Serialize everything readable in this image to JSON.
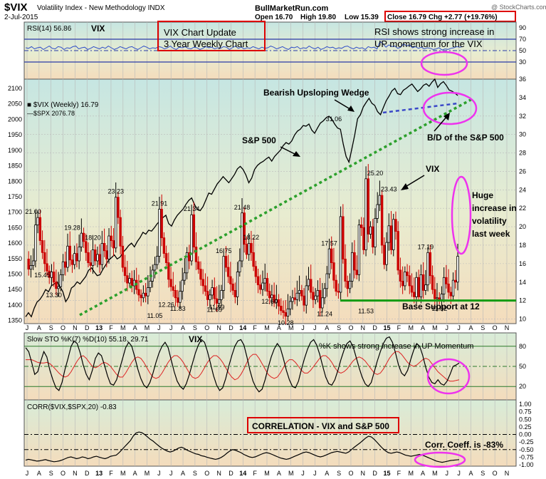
{
  "header": {
    "symbol": "$VIX",
    "name": "Volatility Index - New Methodology  INDX",
    "date": "2-Jul-2015",
    "source": "BullMarketRun.com",
    "open": "Open 16.70",
    "high": "High 19.80",
    "low": "Low 15.39",
    "close_chg": "Close 16.79  Chg +2.77 (+19.76%)",
    "credit": "@ StockCharts.com"
  },
  "colors": {
    "panel_bg_top": "#c8e8e0",
    "panel_bg_bottom": "#f4dcc0",
    "vix_up": "#000000",
    "vix_down": "#cc0000",
    "spx": "#000000",
    "wedge": "#3a48c8",
    "trendline": "#2ca02c",
    "support": "#139b13",
    "rsi": "#3050c8",
    "annotation_box": "#dd0000",
    "highlight": "#ee33ee",
    "sto_d": "#dd2222"
  },
  "annotations": {
    "title_box_line1": "VIX Chart Update",
    "title_box_line2": "3 Year Weekly Chart",
    "rsi_note_line1": "RSI shows strong increase in",
    "rsi_note_line2": "UP momentum for the VIX",
    "wedge": "Bearish Upsloping Wedge",
    "spx": "S&P 500",
    "bd": "B/D of the S&P 500",
    "vix": "VIX",
    "huge_1": "Huge",
    "huge_2": "increase in",
    "huge_3": "volatility",
    "huge_4": "last week",
    "support": "Base Support at 12",
    "sto_note": "%K shows strong increase in UP Momentum",
    "corr_box": "CORRELATION  - VIX and S&P 500",
    "corr_note": "Corr. Coeff. is -83%"
  },
  "chart_data": [
    {
      "type": "line",
      "panel": "RSI",
      "label": "RSI(14) 56.86",
      "tag": "VIX",
      "ylim": [
        0,
        100
      ],
      "ticks": [
        90,
        70,
        50,
        30
      ],
      "ref_lines": [
        70,
        30
      ],
      "values": [
        55,
        54,
        57,
        53,
        55,
        56,
        52,
        55,
        58,
        54,
        53,
        57,
        56,
        52,
        55,
        54,
        57,
        58,
        53,
        55,
        56,
        52,
        54,
        57,
        55,
        53,
        56,
        54,
        58,
        55,
        52,
        54,
        57,
        55,
        53,
        56,
        57,
        54,
        52,
        55,
        58,
        56,
        53,
        55,
        54,
        57,
        56,
        53,
        55,
        58,
        54,
        52,
        56,
        55,
        57,
        54,
        53,
        56,
        55,
        52,
        54,
        57,
        55,
        56,
        53,
        55,
        54,
        57,
        56,
        52,
        55,
        58,
        54,
        56,
        53,
        55,
        54,
        57,
        55,
        53,
        56,
        54,
        55,
        58,
        56,
        53,
        55,
        57,
        54,
        52,
        56,
        55,
        57,
        53,
        55,
        54,
        58,
        55,
        53,
        56,
        52,
        54,
        57,
        55,
        56,
        53,
        55,
        54,
        57,
        58,
        55,
        53,
        56,
        54,
        55,
        52,
        57,
        55,
        56,
        53,
        66,
        62,
        56,
        60,
        57,
        58,
        54,
        56,
        62,
        58,
        60,
        55,
        57,
        54,
        56,
        53,
        55,
        54,
        52,
        53,
        55,
        51,
        53,
        52,
        54,
        55,
        57,
        56,
        57
      ]
    },
    {
      "type": "line",
      "panel": "price",
      "series": [
        {
          "name": "$VIX (Weekly) 16.79",
          "values": [
            16.5,
            15.4,
            15.8,
            16.3,
            20.2,
            21.0,
            18.5,
            17.2,
            16.0,
            15.2,
            14.5,
            15.1,
            14.0,
            13.3,
            13.5,
            14.8,
            16.2,
            15.6,
            17.9,
            16.4,
            15.9,
            17.1,
            16.3,
            17.8,
            19.3,
            18.4,
            17.2,
            16.1,
            15.8,
            17.5,
            16.3,
            17.0,
            15.9,
            18.2,
            17.4,
            16.5,
            19.0,
            18.5,
            17.7,
            23.2,
            21.0,
            17.9,
            15.6,
            14.7,
            13.9,
            14.4,
            13.6,
            14.2,
            13.2,
            12.6,
            12.3,
            12.8,
            12.5,
            13.4,
            14.1,
            15.3,
            15.9,
            16.8,
            21.9,
            18.8,
            17.1,
            16.1,
            14.3,
            13.5,
            13.1,
            12.3,
            11.8,
            13.0,
            14.2,
            15.0,
            17.2,
            16.3,
            21.3,
            17.8,
            16.2,
            15.4,
            14.3,
            13.6,
            13.0,
            12.1,
            12.6,
            13.4,
            12.2,
            11.7,
            12.1,
            13.1,
            16.8,
            15.6,
            14.6,
            13.8,
            13.1,
            12.4,
            15.1,
            16.3,
            21.5,
            18.1,
            17.0,
            18.2,
            17.2,
            15.7,
            14.6,
            13.7,
            13.2,
            13.9,
            14.4,
            13.0,
            12.3,
            12.6,
            11.8,
            12.1,
            11.4,
            10.9,
            10.7,
            10.3,
            11.1,
            11.9,
            12.3,
            12.1,
            12.8,
            13.1,
            12.5,
            11.5,
            13.6,
            14.3,
            12.9,
            12.1,
            12.5,
            13.1,
            11.2,
            12.3,
            13.3,
            14.9,
            17.6,
            16.1,
            14.2,
            13.0,
            12.9,
            21.1,
            16.5,
            14.1,
            13.3,
            14.1,
            17.2,
            15.3,
            14.8,
            20.2,
            19.9,
            17.5,
            25.2,
            19.2,
            20.0,
            17.8,
            20.9,
            22.4,
            23.4,
            18.0,
            15.9,
            18.3,
            20.1,
            17.5,
            20.8,
            19.5,
            15.3,
            14.1,
            13.6,
            15.1,
            14.7,
            13.6,
            12.9,
            12.4,
            14.5,
            12.4,
            14.8,
            13.1,
            13.7,
            17.2,
            14.7,
            13.2,
            12.2,
            12.3,
            12.1,
            12.7,
            14.5,
            13.8,
            12.9,
            12.5,
            14.2,
            14.0,
            16.8
          ]
        },
        {
          "name": "$SPX 2076.78",
          "values": [
            1362,
            1375,
            1362,
            1390,
            1410,
            1418,
            1432,
            1450,
            1443,
            1462,
            1468,
            1475,
            1460,
            1443,
            1411,
            1425,
            1455,
            1462,
            1475,
            1468,
            1480,
            1492,
            1512,
            1520,
            1507,
            1495,
            1498,
            1515,
            1530,
            1545,
            1553,
            1562,
            1549,
            1555,
            1570,
            1580,
            1592,
            1600,
            1588,
            1605,
            1618,
            1635,
            1629,
            1642,
            1639,
            1650,
            1663,
            1672,
            1683,
            1690,
            1663,
            1655,
            1675,
            1690,
            1700,
            1710,
            1725,
            1738,
            1746,
            1725,
            1710,
            1705,
            1718,
            1740,
            1762,
            1758,
            1775,
            1792,
            1803,
            1815,
            1805,
            1795,
            1808,
            1822,
            1840,
            1848,
            1838,
            1820,
            1795,
            1810,
            1838,
            1851,
            1859,
            1864,
            1872,
            1878,
            1865,
            1880,
            1890,
            1900,
            1915,
            1925,
            1920,
            1930,
            1950,
            1962,
            1968,
            1980,
            1978,
            1985,
            1965,
            1955,
            1972,
            1988,
            1995,
            2005,
            2010,
            2001,
            1985,
            1972,
            1968,
            1920,
            1880,
            1862,
            1905,
            1950,
            2002,
            2015,
            2040,
            2055,
            2068,
            2052,
            2045,
            2025,
            2015,
            2038,
            2060,
            2075,
            2092,
            2100,
            2083,
            2080,
            2094,
            2100,
            2108,
            2114,
            2102,
            2090,
            2098,
            2110,
            2115,
            2107,
            2120,
            2130,
            2103,
            2115,
            2122,
            2110,
            2095,
            2091,
            2085,
            2077
          ]
        }
      ],
      "ylim_left": [
        1340,
        2130
      ],
      "ylim_right": [
        9.5,
        36
      ],
      "ticks_left": [
        2100,
        2050,
        2000,
        1950,
        1900,
        1850,
        1800,
        1750,
        1700,
        1650,
        1600,
        1550,
        1500,
        1450,
        1400,
        1350
      ],
      "ticks_right": [
        32,
        30,
        28,
        26,
        24,
        22,
        20,
        18,
        16,
        14,
        12,
        10
      ],
      "ticks_right_partial": [
        34,
        36
      ],
      "data_labels": [
        "21.00",
        "15.45",
        "13.30",
        "23.23",
        "19.28",
        "18.20",
        "11.05",
        "12.26",
        "21.91",
        "11.83",
        "21.34",
        "11.99",
        "16.75",
        "11.69",
        "21.48",
        "18.22",
        "12.60",
        "10.28",
        "17.57",
        "11.24",
        "31.06",
        "25.20",
        "23.43",
        "11.53",
        "17.19",
        "11.82"
      ],
      "support_level": 12
    },
    {
      "type": "line",
      "panel": "Slow STO",
      "label": "Slow STO %K(7) %D(10) 55.18, 29.71",
      "tag": "VIX",
      "ylim": [
        0,
        100
      ],
      "ticks": [
        80,
        50,
        20
      ],
      "ref_lines": [
        80,
        50,
        20
      ],
      "series": [
        {
          "name": "%K",
          "values": [
            78,
            72,
            56,
            38,
            42,
            58,
            72,
            64,
            44,
            30,
            18,
            14,
            26,
            46,
            62,
            80,
            88,
            84,
            70,
            52,
            38,
            30,
            44,
            62,
            70,
            66,
            52,
            36,
            24,
            22,
            30,
            46,
            62,
            78,
            86,
            80,
            64,
            46,
            32,
            22,
            18,
            26,
            40,
            56,
            70,
            80,
            86,
            78,
            60,
            42,
            28,
            20,
            16,
            24,
            38,
            54,
            70,
            82,
            90,
            86,
            72,
            54,
            36,
            22,
            14,
            18,
            32,
            50,
            66,
            80,
            88,
            90,
            82,
            64,
            44,
            28,
            18,
            12,
            16,
            30,
            48,
            64,
            76,
            84,
            78,
            62,
            44,
            30,
            20,
            18,
            28,
            46,
            62,
            76,
            86,
            90,
            82,
            68,
            50,
            34,
            24,
            22,
            30,
            44,
            60,
            74,
            84,
            88,
            80,
            64,
            48,
            34,
            24,
            20,
            26,
            42,
            58,
            72,
            84,
            92,
            94,
            86,
            70,
            52,
            40,
            36,
            44,
            60,
            74,
            84,
            80,
            66,
            48,
            34,
            26,
            24,
            30,
            24,
            22,
            28,
            38,
            50,
            52,
            55
          ]
        },
        {
          "name": "%D",
          "values": [
            60,
            60,
            60,
            58,
            56,
            55,
            55,
            56,
            54,
            50,
            45,
            40,
            36,
            34,
            36,
            42,
            50,
            58,
            64,
            66,
            62,
            56,
            50,
            48,
            50,
            54,
            56,
            54,
            50,
            44,
            38,
            34,
            34,
            40,
            48,
            56,
            62,
            64,
            62,
            56,
            48,
            40,
            34,
            32,
            34,
            40,
            48,
            56,
            62,
            66,
            66,
            62,
            56,
            48,
            40,
            34,
            32,
            34,
            40,
            48,
            56,
            62,
            66,
            66,
            62,
            56,
            48,
            40,
            34,
            30,
            32,
            38,
            46,
            56,
            64,
            68,
            68,
            62,
            54,
            46,
            38,
            34,
            32,
            34,
            40,
            48,
            56,
            60,
            60,
            56,
            50,
            44,
            40,
            40,
            44,
            50,
            56,
            62,
            66,
            66,
            62,
            56,
            48,
            42,
            40,
            42,
            46,
            52,
            58,
            62,
            64,
            62,
            58,
            52,
            46,
            40,
            38,
            40,
            46,
            54,
            62,
            68,
            72,
            72,
            68,
            62,
            56,
            52,
            50,
            52,
            56,
            60,
            62,
            60,
            54,
            48,
            42,
            38,
            34,
            30,
            28,
            28,
            29,
            30
          ]
        }
      ]
    },
    {
      "type": "line",
      "panel": "CORR",
      "label": "CORR($VIX,$SPX,20) -0.83",
      "ylim": [
        -1.0,
        1.0
      ],
      "ticks": [
        "1.00",
        "0.75",
        "0.50",
        "0.25",
        "0.00",
        "-0.25",
        "-0.50",
        "-0.75",
        "-1.00"
      ],
      "ref_lines": [
        0,
        -0.5
      ],
      "values": [
        -0.85,
        -0.82,
        -0.84,
        -0.86,
        -0.88,
        -0.87,
        -0.85,
        -0.83,
        -0.86,
        -0.88,
        -0.9,
        -0.89,
        -0.87,
        -0.84,
        -0.8,
        -0.76,
        -0.74,
        -0.77,
        -0.8,
        -0.78,
        -0.74,
        -0.76,
        -0.8,
        -0.78,
        -0.74,
        -0.72,
        -0.75,
        -0.78,
        -0.8,
        -0.77,
        -0.72,
        -0.7,
        -0.68,
        -0.6,
        -0.5,
        -0.4,
        -0.3,
        -0.2,
        -0.05,
        0.05,
        0.08,
        0.06,
        0.0,
        -0.08,
        -0.16,
        -0.22,
        -0.3,
        -0.38,
        -0.45,
        -0.5,
        -0.55,
        -0.58,
        -0.55,
        -0.5,
        -0.45,
        -0.42,
        -0.46,
        -0.52,
        -0.56,
        -0.6,
        -0.64,
        -0.66,
        -0.7,
        -0.72,
        -0.75,
        -0.78,
        -0.8,
        -0.82,
        -0.8,
        -0.76,
        -0.7,
        -0.62,
        -0.55,
        -0.5,
        -0.52,
        -0.56,
        -0.6,
        -0.66,
        -0.7,
        -0.74,
        -0.76,
        -0.74,
        -0.7,
        -0.66,
        -0.62,
        -0.6,
        -0.62,
        -0.66,
        -0.7,
        -0.74,
        -0.78,
        -0.8,
        -0.82,
        -0.8,
        -0.76,
        -0.72,
        -0.68,
        -0.64,
        -0.6,
        -0.58,
        -0.6,
        -0.64,
        -0.68,
        -0.72,
        -0.74,
        -0.72,
        -0.68,
        -0.64,
        -0.6,
        -0.58,
        -0.56,
        -0.58,
        -0.6,
        -0.62,
        -0.58,
        -0.5,
        -0.42,
        -0.35,
        -0.28,
        -0.2,
        -0.12,
        -0.06,
        -0.08,
        -0.16,
        -0.26,
        -0.36,
        -0.46,
        -0.54,
        -0.6,
        -0.62,
        -0.6,
        -0.58,
        -0.6,
        -0.64,
        -0.68,
        -0.7,
        -0.72,
        -0.7,
        -0.68,
        -0.66,
        -0.68,
        -0.72,
        -0.76,
        -0.8,
        -0.84,
        -0.88,
        -0.9,
        -0.92,
        -0.9,
        -0.88,
        -0.86,
        -0.85,
        -0.84,
        -0.83
      ]
    }
  ],
  "x_axis": {
    "months": [
      "J",
      "A",
      "S",
      "O",
      "N",
      "D",
      "13",
      "F",
      "M",
      "A",
      "M",
      "J",
      "J",
      "A",
      "S",
      "O",
      "N",
      "D",
      "14",
      "F",
      "M",
      "A",
      "M",
      "J",
      "J",
      "A",
      "S",
      "O",
      "N",
      "D",
      "15",
      "F",
      "M",
      "A",
      "M",
      "J",
      "J",
      "A",
      "S",
      "O",
      "N"
    ]
  }
}
